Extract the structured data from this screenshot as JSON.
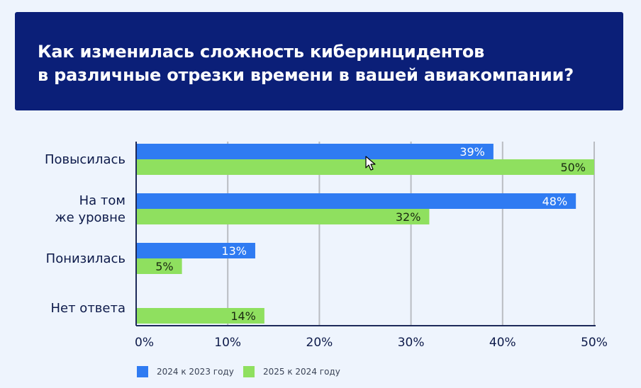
{
  "title": {
    "line1": "Как изменилась сложность киберинцидентов",
    "line2": "в различные отрезки времени в вашей авиакомпании?"
  },
  "colors": {
    "series1": "#2f7bf2",
    "series2": "#8fe05f",
    "grid": "#b9bcc2",
    "axis": "#1d2a5a"
  },
  "chart_data": {
    "type": "bar",
    "orientation": "horizontal",
    "categories": [
      "Повысилась",
      "На том\nже уровне",
      "Понизилась",
      "Нет ответа"
    ],
    "series": [
      {
        "name": "2024 к 2023 году",
        "values": [
          39,
          48,
          13,
          null
        ]
      },
      {
        "name": "2025 к 2024 году",
        "values": [
          50,
          32,
          5,
          14
        ]
      }
    ],
    "data_labels": [
      [
        "39%",
        "48%",
        "13%",
        ""
      ],
      [
        "50%",
        "32%",
        "5%",
        "14%"
      ]
    ],
    "xlim": [
      0,
      50
    ],
    "xticks": [
      "0%",
      "10%",
      "20%",
      "30%",
      "40%",
      "50%"
    ],
    "xtick_values": [
      0,
      10,
      20,
      30,
      40,
      50
    ],
    "grid": true,
    "legend_position": "bottom-left"
  }
}
